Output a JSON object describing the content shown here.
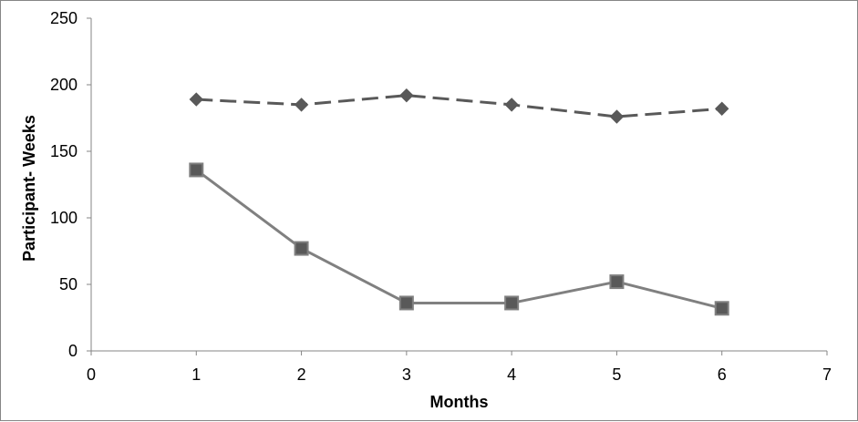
{
  "chart_data": {
    "type": "line",
    "xlabel": "Months",
    "ylabel": "Participant- Weeks",
    "xlim": [
      0,
      7
    ],
    "ylim": [
      0,
      250
    ],
    "x_ticks": [
      "0",
      "1",
      "2",
      "3",
      "4",
      "5",
      "6",
      "7"
    ],
    "y_ticks": [
      "0",
      "50",
      "100",
      "150",
      "200",
      "250"
    ],
    "grid": false,
    "legend": "none",
    "series": [
      {
        "x": [
          1,
          2,
          3,
          4,
          5,
          6
        ],
        "values": [
          189,
          185,
          192,
          185,
          176,
          182
        ],
        "line_style": "dashed",
        "marker": "diamond",
        "color": "#595959"
      },
      {
        "x": [
          1,
          2,
          3,
          4,
          5,
          6
        ],
        "values": [
          136,
          77,
          36,
          36,
          52,
          32
        ],
        "line_style": "solid",
        "marker": "square",
        "color": "#808080",
        "marker_color": "#595959"
      }
    ]
  }
}
